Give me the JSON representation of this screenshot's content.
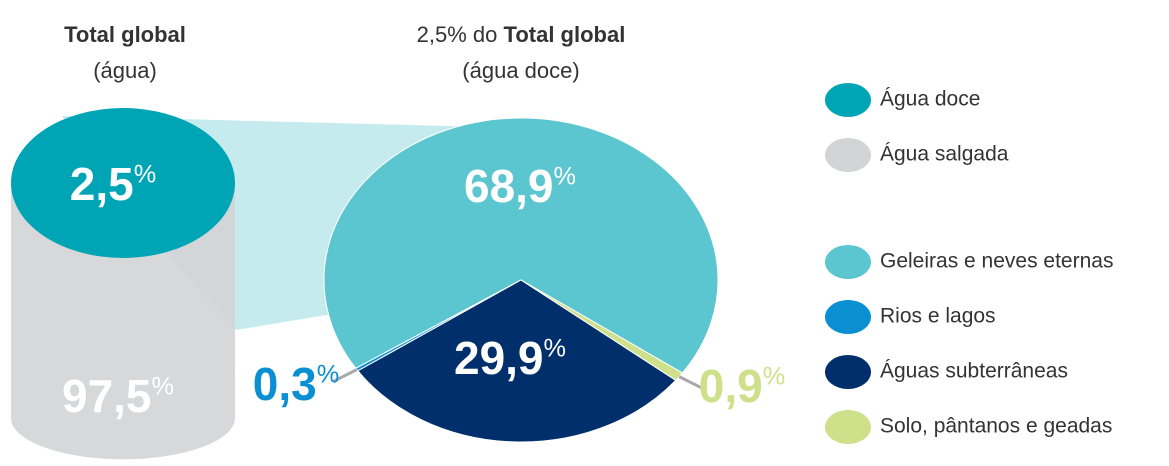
{
  "chart_data": [
    {
      "type": "cylinder",
      "title": "Total global",
      "subtitle": "(água)",
      "categories": [
        "Água doce",
        "Água salgada"
      ],
      "values": [
        2.5,
        97.5
      ],
      "value_labels": [
        "2,5%",
        "97,5%"
      ],
      "colors": [
        "#00a5b5",
        "#d3d4d6"
      ]
    },
    {
      "type": "pie",
      "title_prefix": "2,5% do",
      "title": "Total global",
      "subtitle": "(água doce)",
      "categories": [
        "Geleiras e neves eternas",
        "Rios e lagos",
        "Águas subterrâneas",
        "Solo, pântanos e geadas"
      ],
      "values": [
        68.9,
        0.3,
        29.9,
        0.9
      ],
      "value_labels": [
        "68,9%",
        "0,3%",
        "29,9%",
        "0,9%"
      ],
      "colors": [
        "#5bc5d0",
        "#0a8fd3",
        "#002f6c",
        "#cfe08a"
      ]
    }
  ]
}
